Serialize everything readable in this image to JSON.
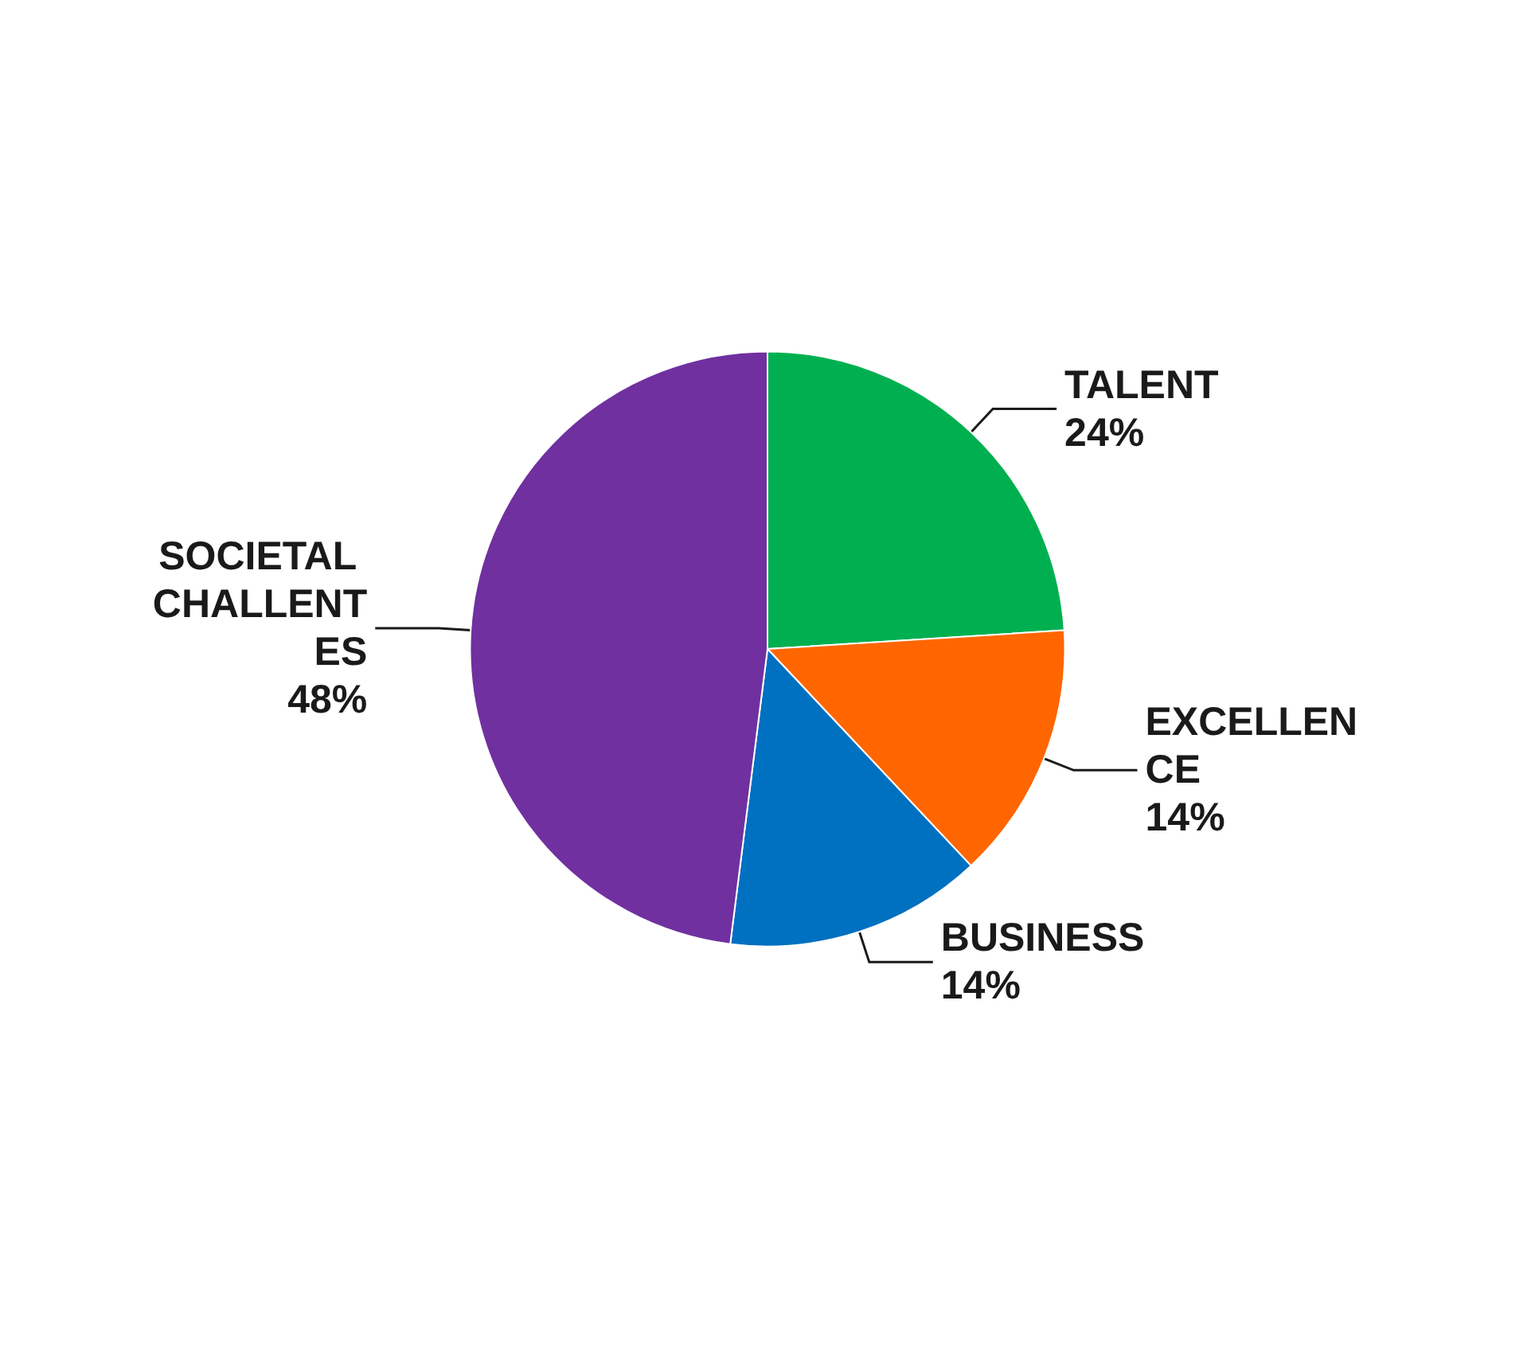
{
  "chart_data": {
    "type": "pie",
    "categories": [
      "TALENT",
      "EXCELLENCE",
      "BUSINESS",
      "SOCIETAL CHALLENTES"
    ],
    "values": [
      24,
      14,
      14,
      48
    ],
    "colors": [
      "#00b050",
      "#ff6600",
      "#0070c0",
      "#7030a0"
    ],
    "value_labels": [
      "24%",
      "14%",
      "14%",
      "48%"
    ]
  }
}
